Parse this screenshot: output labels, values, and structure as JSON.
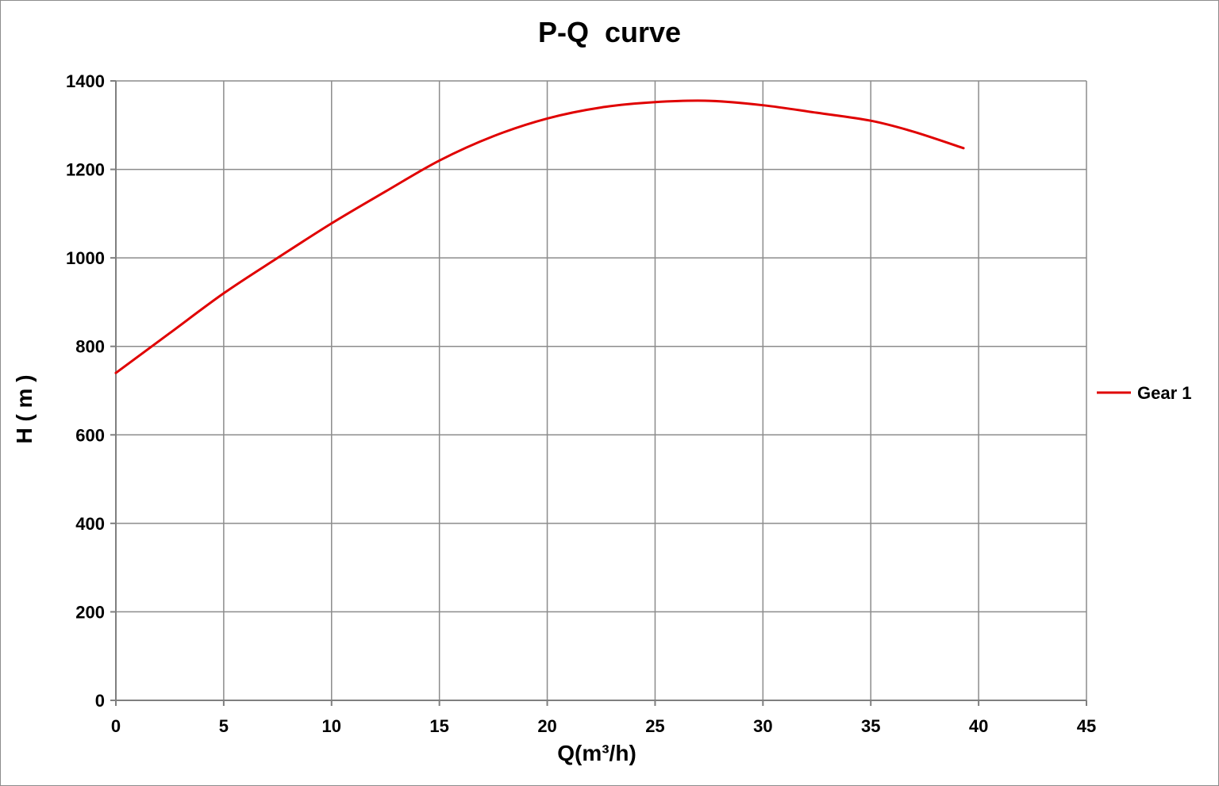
{
  "chart_data": {
    "type": "line",
    "title": "P-Q  curve",
    "xlabel": "Q(m³/h)",
    "ylabel": "H ( m )",
    "xlim": [
      0,
      45
    ],
    "ylim": [
      0,
      1400
    ],
    "xticks": [
      0,
      5,
      10,
      15,
      20,
      25,
      30,
      35,
      40,
      45
    ],
    "yticks": [
      0,
      200,
      400,
      600,
      800,
      1000,
      1200,
      1400
    ],
    "grid": true,
    "legend_position": "right",
    "series": [
      {
        "name": "Gear 1",
        "color": "#e00000",
        "x": [
          0,
          2.5,
          5,
          7.5,
          10,
          12.5,
          15,
          17.5,
          20,
          22.5,
          25,
          27.5,
          30,
          32.5,
          35,
          37,
          39.3
        ],
        "y": [
          740,
          830,
          920,
          1000,
          1078,
          1150,
          1220,
          1275,
          1315,
          1340,
          1352,
          1355,
          1345,
          1328,
          1310,
          1285,
          1248
        ]
      }
    ]
  }
}
